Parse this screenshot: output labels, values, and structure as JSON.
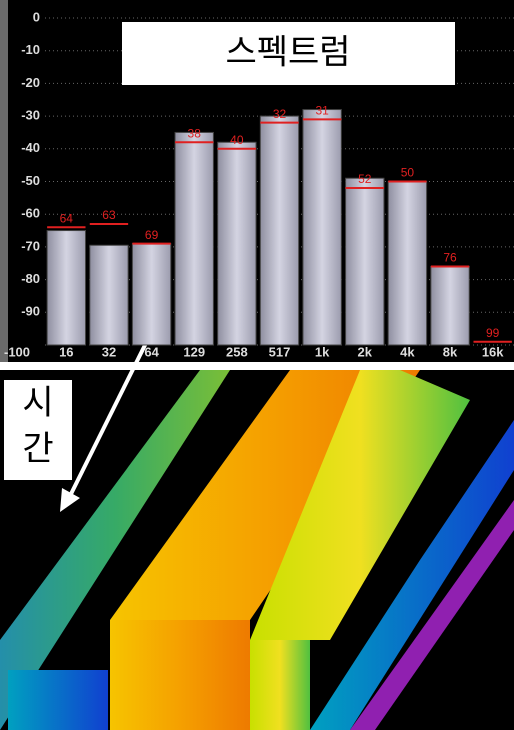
{
  "chart_data": {
    "type": "bar",
    "title": "스펙트럼",
    "annotation": "시간",
    "categories": [
      "16",
      "32",
      "64",
      "129",
      "258",
      "517",
      "1k",
      "2k",
      "4k",
      "8k",
      "16k"
    ],
    "values": [
      -65,
      -69.5,
      -69,
      -35,
      -38,
      -30,
      -28,
      -49,
      -50,
      -76,
      -100
    ],
    "color": "#c0c0d0",
    "peaks": {
      "values": [
        -64,
        -63,
        -69,
        -38,
        -40,
        -32,
        -31,
        -52,
        -50,
        -76,
        -99
      ],
      "value_labels": [
        "64",
        "63",
        "69",
        "38",
        "40",
        "32",
        "31",
        "52",
        "50",
        "76",
        "99"
      ],
      "color": "#e02020"
    },
    "ylim": [
      -100,
      0
    ],
    "yticks": [
      0,
      -10,
      -20,
      -30,
      -40,
      -50,
      -60,
      -70,
      -80,
      -90,
      -100
    ],
    "grid": true
  }
}
